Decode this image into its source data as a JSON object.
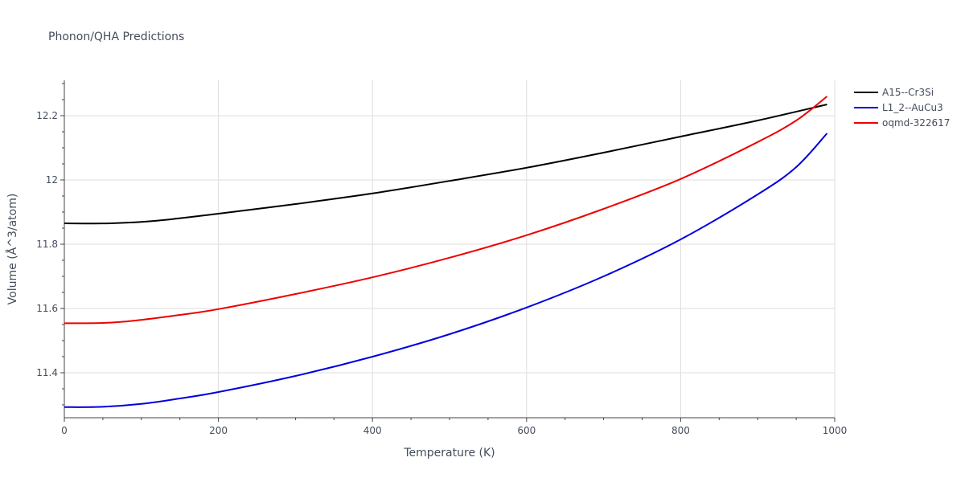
{
  "chart_data": {
    "type": "line",
    "title": "Phonon/QHA Predictions",
    "xlabel": "Temperature (K)",
    "ylabel": "Volume (Å^3/atom)",
    "xlim": [
      0,
      1000
    ],
    "ylim": [
      11.26,
      12.31
    ],
    "xticks": [
      0,
      200,
      400,
      600,
      800,
      1000
    ],
    "xtick_labels": [
      "0",
      "200",
      "400",
      "600",
      "800",
      "1000"
    ],
    "yticks": [
      11.4,
      11.6,
      11.8,
      12.0,
      12.2
    ],
    "ytick_labels": [
      "11.4",
      "11.6",
      "11.8",
      "12",
      "12.2"
    ],
    "grid": true,
    "legend_position": "top-right",
    "series": [
      {
        "name": "A15--Cr3Si",
        "color": "#000000",
        "x": [
          0,
          60,
          120,
          200,
          300,
          400,
          500,
          600,
          700,
          800,
          900,
          990
        ],
        "y": [
          11.865,
          11.865,
          11.873,
          11.895,
          11.925,
          11.958,
          11.997,
          12.038,
          12.085,
          12.135,
          12.185,
          12.235
        ]
      },
      {
        "name": "L1_2--AuCu3",
        "color": "#0000dd",
        "x": [
          0,
          50,
          100,
          150,
          200,
          300,
          400,
          500,
          600,
          700,
          800,
          900,
          950,
          990
        ],
        "y": [
          11.293,
          11.294,
          11.303,
          11.32,
          11.34,
          11.39,
          11.45,
          11.52,
          11.603,
          11.7,
          11.815,
          11.955,
          12.04,
          12.145
        ]
      },
      {
        "name": "oqmd-322617",
        "color": "#ee0000",
        "x": [
          0,
          50,
          90,
          150,
          200,
          300,
          400,
          500,
          600,
          700,
          800,
          900,
          950,
          990
        ],
        "y": [
          11.554,
          11.555,
          11.562,
          11.58,
          11.598,
          11.645,
          11.697,
          11.758,
          11.828,
          11.91,
          12.003,
          12.118,
          12.185,
          12.26
        ]
      }
    ]
  }
}
